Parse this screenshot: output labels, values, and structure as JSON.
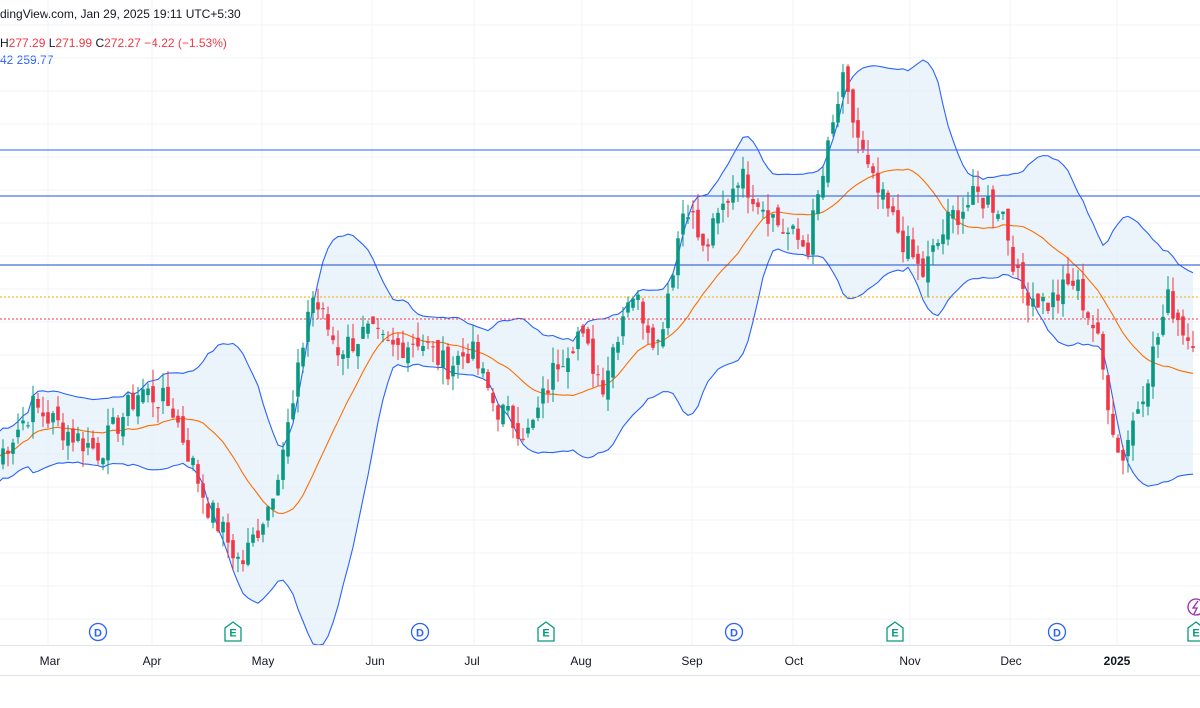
{
  "header": {
    "source_line": "dingView.com, Jan 29, 2025 19:11 UTC+5:30",
    "ohlc": {
      "high_label": "H",
      "high": "277.29",
      "low_label": "L",
      "low": "271.99",
      "close_label": "C",
      "close": "272.27",
      "change": "−4.22 (−1.53%)"
    },
    "bb_line": "42  259.77"
  },
  "colors": {
    "up": "#089981",
    "down": "#f23645",
    "band": "#2962ff",
    "band_fill": "#e3effa",
    "basis": "#ff6d00",
    "grid": "#f0f3fa"
  },
  "x_axis": [
    "Mar",
    "Apr",
    "May",
    "Jun",
    "Jul",
    "Aug",
    "Sep",
    "Oct",
    "Nov",
    "Dec",
    "2025"
  ],
  "markers": [
    "D",
    "E",
    "D",
    "E",
    "D",
    "E",
    "D",
    "E"
  ],
  "chart_data": {
    "type": "candlestick",
    "indicator": "Bollinger Bands",
    "x_range": [
      "Feb 2024",
      "Jan 29, 2025"
    ],
    "last_candle": {
      "high": 277.29,
      "low": 271.99,
      "close": 272.27,
      "change": -4.22,
      "change_pct": -1.53
    },
    "bb_value": 259.77,
    "price_path": [
      [
        "Feb 20",
        253
      ],
      [
        "Mar 1",
        262
      ],
      [
        "Mar 10",
        258
      ],
      [
        "Mar 20",
        254
      ],
      [
        "Apr 1",
        265
      ],
      [
        "Apr 10",
        262
      ],
      [
        "Apr 20",
        245
      ],
      [
        "Apr 30",
        234
      ],
      [
        "May 8",
        245
      ],
      [
        "May 15",
        262
      ],
      [
        "May 20",
        282
      ],
      [
        "May 28",
        272
      ],
      [
        "Jun 5",
        275
      ],
      [
        "Jun 12",
        272
      ],
      [
        "Jun 20",
        274
      ],
      [
        "Jun 28",
        269
      ],
      [
        "Jul 5",
        272
      ],
      [
        "Jul 12",
        262
      ],
      [
        "Jul 22",
        257
      ],
      [
        "Jul 30",
        270
      ],
      [
        "Aug 5",
        275
      ],
      [
        "Aug 12",
        266
      ],
      [
        "Aug 20",
        283
      ],
      [
        "Aug 28",
        273
      ],
      [
        "Sep 5",
        299
      ],
      [
        "Sep 10",
        289
      ],
      [
        "Sep 20",
        303
      ],
      [
        "Sep 28",
        297
      ],
      [
        "Oct 3",
        293
      ],
      [
        "Oct 10",
        290
      ],
      [
        "Oct 15",
        304
      ],
      [
        "Oct 20",
        319
      ],
      [
        "Oct 28",
        302
      ],
      [
        "Nov 5",
        293
      ],
      [
        "Nov 12",
        285
      ],
      [
        "Nov 20",
        295
      ],
      [
        "Nov 28",
        299
      ],
      [
        "Dec 5",
        297
      ],
      [
        "Dec 10",
        283
      ],
      [
        "Dec 18",
        280
      ],
      [
        "Dec 26",
        284
      ],
      [
        "Jan 1",
        275
      ],
      [
        "Jan 8",
        252
      ],
      [
        "Jan 15",
        266
      ],
      [
        "Jan 22",
        281
      ],
      [
        "Jan 29",
        272.27
      ]
    ]
  }
}
